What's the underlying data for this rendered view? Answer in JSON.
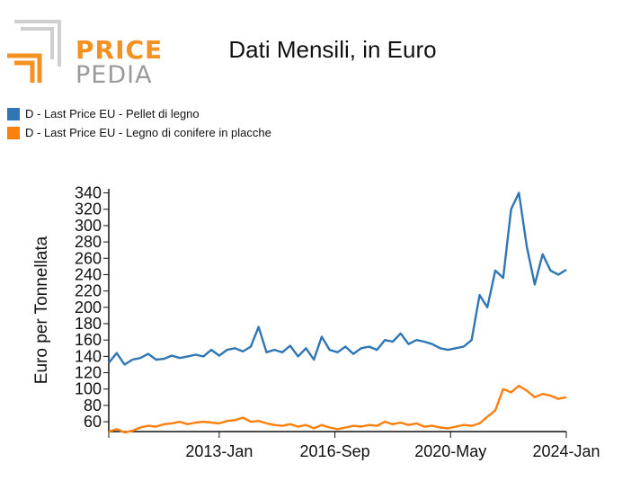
{
  "logo": {
    "top": "PRICE",
    "bottom": "PEDIA"
  },
  "chart_data": {
    "type": "line",
    "title": "Dati Mensili, in Euro",
    "xlabel": "",
    "ylabel": "Euro per Tonnellata",
    "ylim": [
      48,
      345
    ],
    "yticks": [
      60,
      80,
      100,
      120,
      140,
      160,
      180,
      200,
      220,
      240,
      260,
      280,
      300,
      320,
      340
    ],
    "xlim": [
      "2009-07",
      "2024-01"
    ],
    "xticks": [
      "2013-Jan",
      "2016-Sep",
      "2020-May",
      "2024-Jan"
    ],
    "legend_position": "top-left",
    "series": [
      {
        "name": "D - Last Price EU - Pellet di legno",
        "color": "#2f77b4",
        "x": [
          "2009-07",
          "2009-10",
          "2010-01",
          "2010-04",
          "2010-07",
          "2010-10",
          "2011-01",
          "2011-04",
          "2011-07",
          "2011-10",
          "2012-01",
          "2012-04",
          "2012-07",
          "2012-10",
          "2013-01",
          "2013-04",
          "2013-07",
          "2013-10",
          "2014-01",
          "2014-04",
          "2014-07",
          "2014-10",
          "2015-01",
          "2015-04",
          "2015-07",
          "2015-10",
          "2016-01",
          "2016-04",
          "2016-07",
          "2016-10",
          "2017-01",
          "2017-04",
          "2017-07",
          "2017-10",
          "2018-01",
          "2018-04",
          "2018-07",
          "2018-10",
          "2019-01",
          "2019-04",
          "2019-07",
          "2019-10",
          "2020-01",
          "2020-04",
          "2020-07",
          "2020-10",
          "2021-01",
          "2021-04",
          "2021-07",
          "2021-10",
          "2022-01",
          "2022-04",
          "2022-07",
          "2022-10",
          "2023-01",
          "2023-04",
          "2023-07",
          "2023-10",
          "2024-01"
        ],
        "values": [
          132,
          144,
          130,
          136,
          138,
          143,
          136,
          137,
          141,
          138,
          140,
          142,
          140,
          148,
          141,
          148,
          150,
          146,
          152,
          176,
          145,
          148,
          145,
          153,
          140,
          150,
          136,
          164,
          148,
          145,
          152,
          143,
          150,
          152,
          148,
          160,
          158,
          168,
          155,
          160,
          158,
          155,
          150,
          148,
          150,
          152,
          160,
          215,
          200,
          245,
          236,
          320,
          340,
          274,
          228,
          265,
          245,
          240,
          246
        ]
      },
      {
        "name": "D - Last Price EU - Legno di conifere in placche",
        "color": "#ff7f0e",
        "x": [
          "2009-07",
          "2009-10",
          "2010-01",
          "2010-04",
          "2010-07",
          "2010-10",
          "2011-01",
          "2011-04",
          "2011-07",
          "2011-10",
          "2012-01",
          "2012-04",
          "2012-07",
          "2012-10",
          "2013-01",
          "2013-04",
          "2013-07",
          "2013-10",
          "2014-01",
          "2014-04",
          "2014-07",
          "2014-10",
          "2015-01",
          "2015-04",
          "2015-07",
          "2015-10",
          "2016-01",
          "2016-04",
          "2016-07",
          "2016-10",
          "2017-01",
          "2017-04",
          "2017-07",
          "2017-10",
          "2018-01",
          "2018-04",
          "2018-07",
          "2018-10",
          "2019-01",
          "2019-04",
          "2019-07",
          "2019-10",
          "2020-01",
          "2020-04",
          "2020-07",
          "2020-10",
          "2021-01",
          "2021-04",
          "2021-07",
          "2021-10",
          "2022-01",
          "2022-04",
          "2022-07",
          "2022-10",
          "2023-01",
          "2023-04",
          "2023-07",
          "2023-10",
          "2024-01"
        ],
        "values": [
          48,
          51,
          47,
          49,
          53,
          55,
          54,
          57,
          58,
          60,
          57,
          59,
          60,
          59,
          58,
          61,
          62,
          65,
          60,
          61,
          58,
          56,
          55,
          57,
          54,
          56,
          52,
          56,
          53,
          51,
          53,
          55,
          54,
          56,
          55,
          60,
          57,
          59,
          56,
          58,
          54,
          55,
          53,
          52,
          54,
          56,
          55,
          58,
          66,
          74,
          100,
          96,
          104,
          98,
          90,
          94,
          92,
          88,
          90
        ]
      }
    ]
  }
}
